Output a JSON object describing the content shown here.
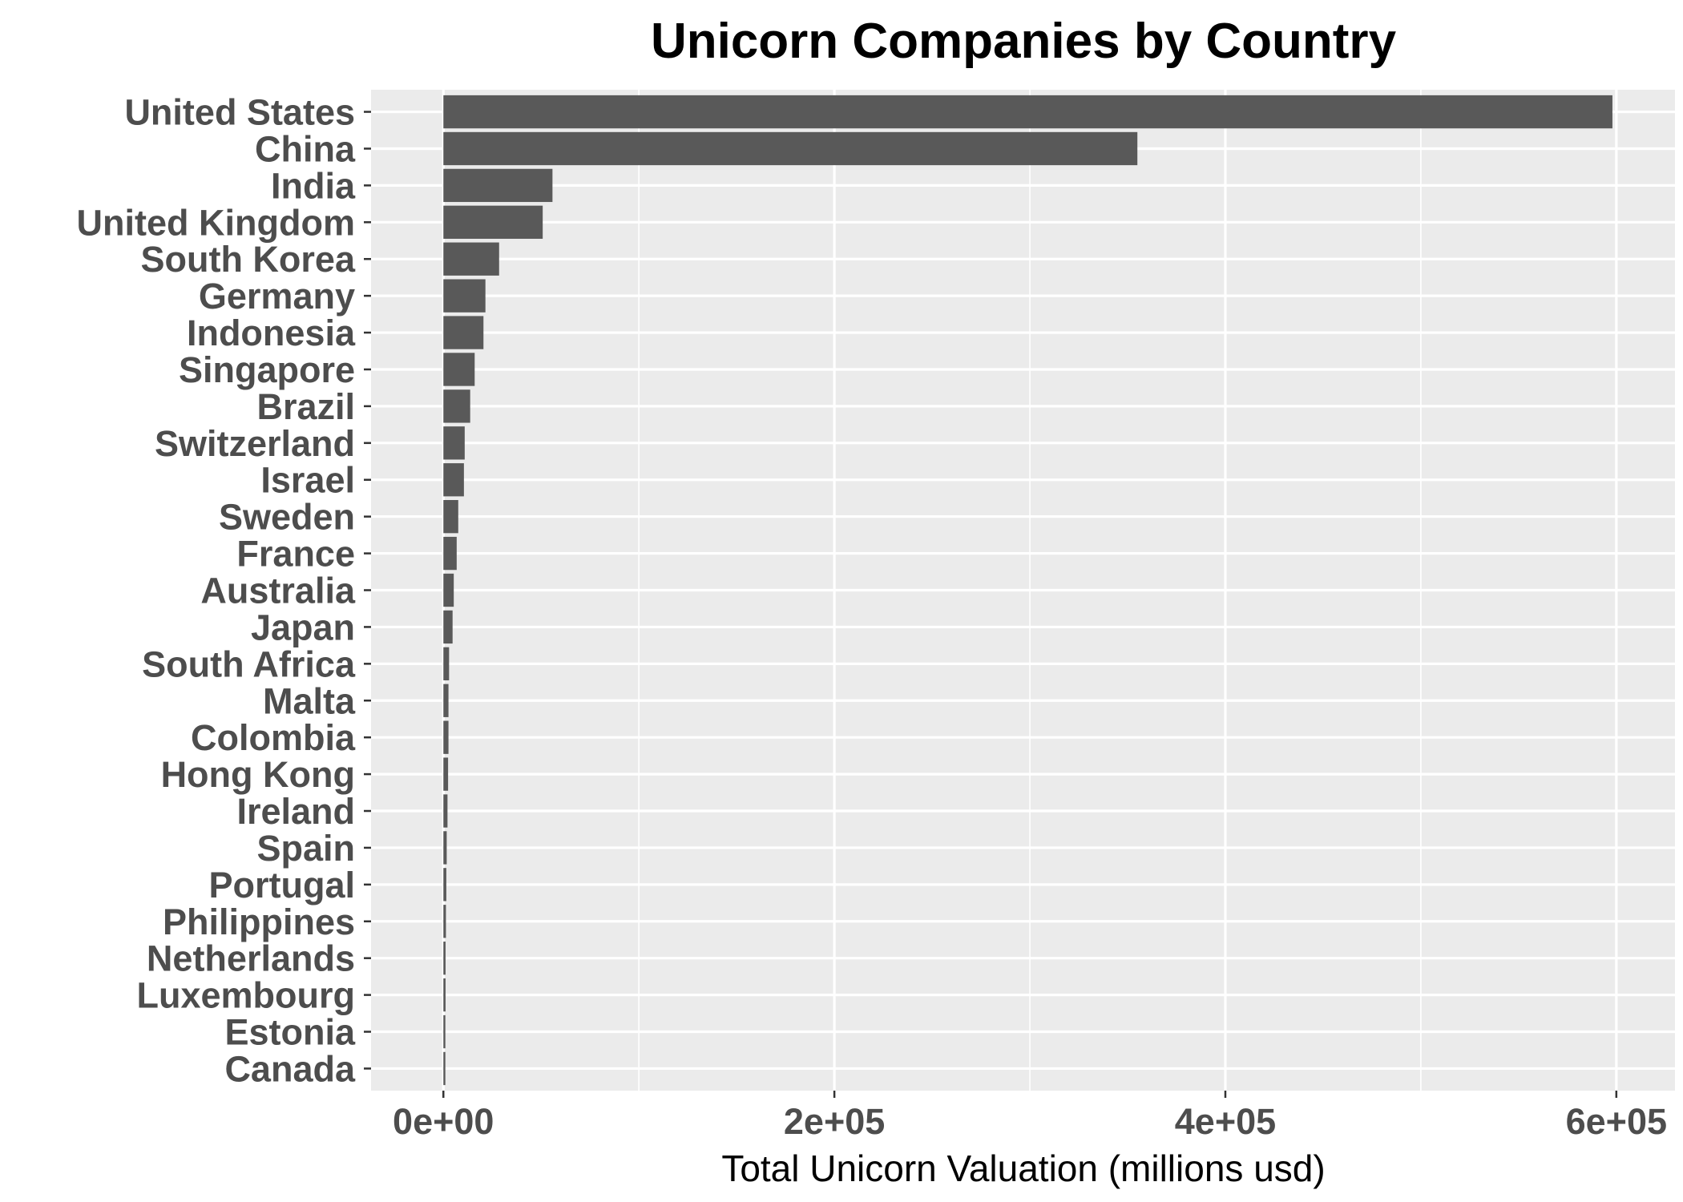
{
  "chart_data": {
    "type": "bar",
    "orientation": "horizontal",
    "title": "Unicorn Companies by Country",
    "xlabel": "Total Unicorn Valuation (millions usd)",
    "ylabel": "",
    "xlim": [
      -37000,
      630000
    ],
    "xticks": [
      0,
      200000,
      400000,
      600000
    ],
    "xtick_labels": [
      "0e+00",
      "2e+05",
      "4e+05",
      "6e+05"
    ],
    "grid": true,
    "legend": "none",
    "categories": [
      "United States",
      "China",
      "India",
      "United Kingdom",
      "South Korea",
      "Germany",
      "Indonesia",
      "Singapore",
      "Brazil",
      "Switzerland",
      "Israel",
      "Sweden",
      "France",
      "Australia",
      "Japan",
      "South Africa",
      "Malta",
      "Colombia",
      "Hong Kong",
      "Ireland",
      "Spain",
      "Portugal",
      "Philippines",
      "Netherlands",
      "Luxembourg",
      "Estonia",
      "Canada"
    ],
    "values": [
      598000,
      355000,
      55800,
      50800,
      28500,
      21500,
      20500,
      16000,
      13700,
      10900,
      10500,
      7600,
      6800,
      5300,
      4700,
      2900,
      2600,
      2600,
      2400,
      2100,
      1700,
      1500,
      1300,
      1100,
      1100,
      1000,
      1000
    ]
  },
  "colors": {
    "bar": "#595959",
    "panel": "#ebebeb",
    "grid": "#ffffff",
    "tick_text": "#4d4d4d",
    "tick_mark": "#333333"
  }
}
